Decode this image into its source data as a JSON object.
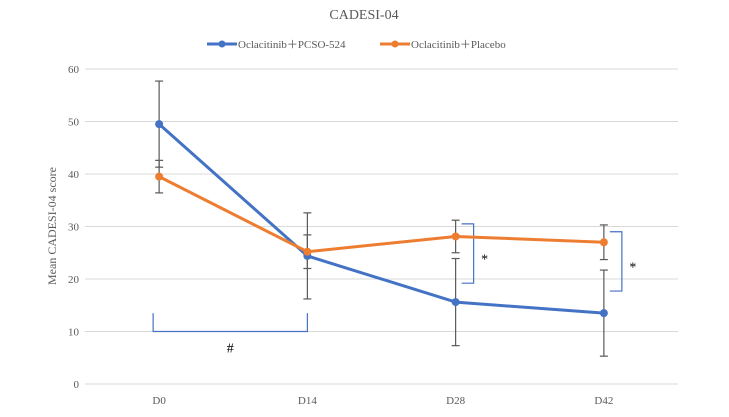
{
  "chart_data": {
    "type": "line",
    "title": "CADESI-04",
    "xlabel": "",
    "ylabel": "Mean CADESI-04 score",
    "ylim": [
      0,
      60
    ],
    "yticks": [
      "0",
      "10",
      "20",
      "30",
      "40",
      "50",
      "60"
    ],
    "grid": true,
    "legend_position": "top",
    "categories": [
      "D0",
      "D14",
      "D28",
      "D42"
    ],
    "series": [
      {
        "name": "Oclacitinib＋PCSO-524",
        "color": "#4472C4",
        "values": [
          49.5,
          24.4,
          15.6,
          13.5
        ],
        "error": [
          8.2,
          8.2,
          8.3,
          8.2
        ]
      },
      {
        "name": "Oclacitinib＋Placebo",
        "color": "#ED7D31",
        "values": [
          39.5,
          25.2,
          28.1,
          27.0
        ],
        "error": [
          3.1,
          3.2,
          3.1,
          3.3
        ]
      }
    ],
    "annotations": [
      {
        "text": "#",
        "type": "bracket",
        "from": "D0",
        "to": "D14",
        "y_top": 13.5,
        "y_bottom": 10
      },
      {
        "text": "*",
        "type": "bracket",
        "at": "D28",
        "y_top": 30.5,
        "y_bottom": 19.2
      },
      {
        "text": "*",
        "type": "bracket",
        "at": "D42",
        "y_top": 29.0,
        "y_bottom": 17.7
      }
    ]
  }
}
